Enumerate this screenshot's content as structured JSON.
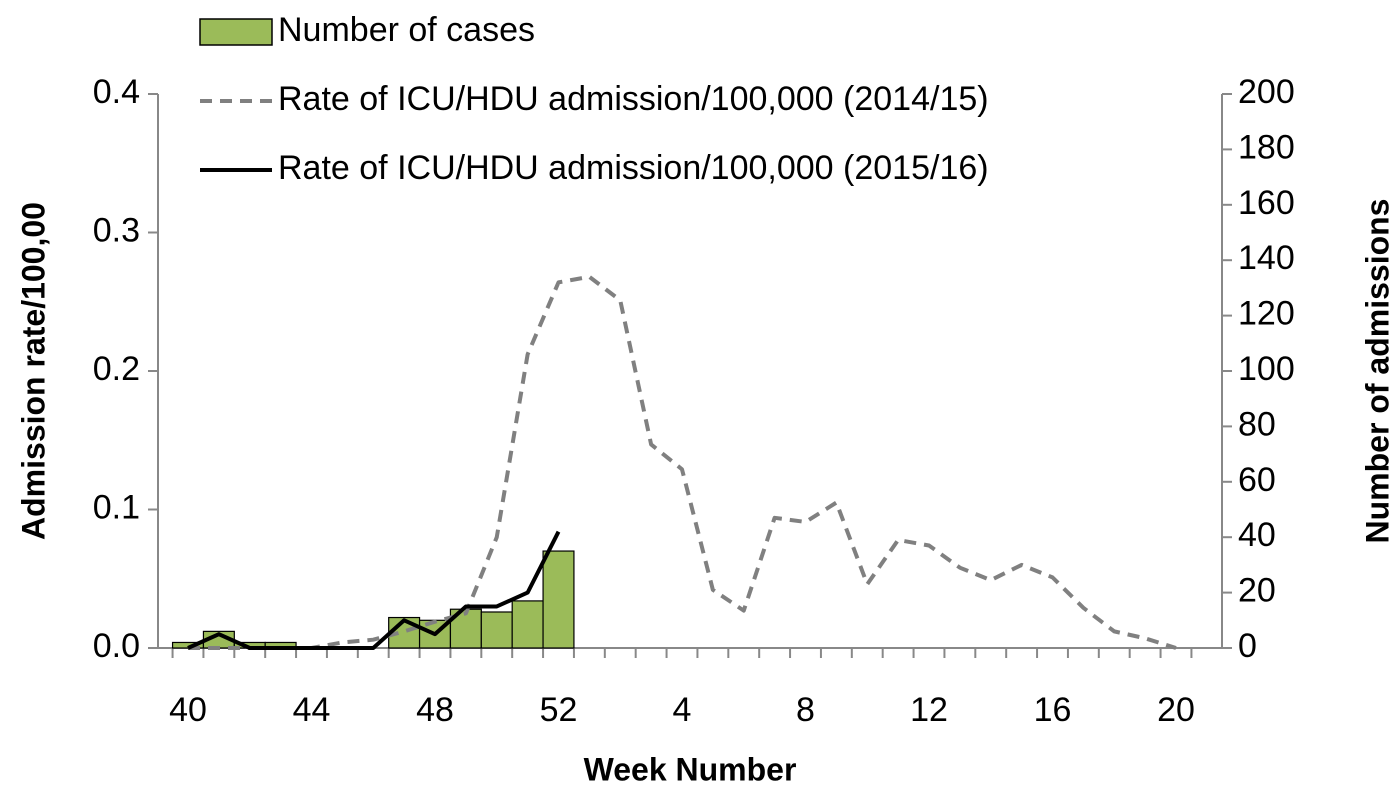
{
  "chart_data": {
    "type": "bar-line",
    "x_label": "Week Number",
    "y_label": "Admission rate/100,00",
    "y2_label": "Number of admissions",
    "categories": [
      "40",
      null,
      null,
      null,
      "44",
      null,
      null,
      null,
      "48",
      null,
      null,
      null,
      "52",
      null,
      null,
      null,
      "4",
      null,
      null,
      null,
      "8",
      null,
      null,
      null,
      "12",
      null,
      null,
      null,
      "16",
      null,
      null,
      null,
      "20"
    ],
    "series": [
      {
        "name": "Number of cases",
        "type": "bar",
        "axis": "y2",
        "color": "#9bbb59",
        "values": [
          2,
          6,
          2,
          2,
          0,
          0,
          0,
          11,
          10,
          14,
          13,
          17,
          35,
          null,
          null,
          null,
          null,
          null,
          null,
          null,
          null,
          null,
          null,
          null,
          null,
          null,
          null,
          null,
          null,
          null,
          null,
          null,
          null
        ]
      },
      {
        "name": "Rate of ICU/HDU admission/100,000 (2014/15)",
        "type": "line",
        "dashed": true,
        "color": "#808080",
        "values": [
          0,
          0,
          0,
          0,
          0,
          0.004,
          0.006,
          0.012,
          0.019,
          0.025,
          0.08,
          0.212,
          0.264,
          0.268,
          0.251,
          0.147,
          0.129,
          0.042,
          0.027,
          0.094,
          0.091,
          0.105,
          0.046,
          0.078,
          0.074,
          0.058,
          0.049,
          0.06,
          0.051,
          0.029,
          0.012,
          0.007,
          0
        ]
      },
      {
        "name": "Rate of ICU/HDU admission/100,000 (2015/16)",
        "type": "line",
        "dashed": false,
        "color": "#000000",
        "values": [
          0,
          0.01,
          0,
          0,
          0,
          0,
          0,
          0.02,
          0.01,
          0.03,
          0.03,
          0.04,
          0.084,
          null,
          null,
          null,
          null,
          null,
          null,
          null,
          null,
          null,
          null,
          null,
          null,
          null,
          null,
          null,
          null,
          null,
          null,
          null,
          null
        ]
      }
    ],
    "ylim": [
      0,
      0.4
    ],
    "yticks": [
      {
        "value": 0,
        "label": "0.0"
      },
      0.1,
      0.2,
      0.3,
      0.4
    ],
    "y2lim": [
      0,
      200
    ],
    "y2ticks": [
      0,
      20,
      40,
      60,
      80,
      100,
      120,
      140,
      160,
      180,
      200
    ],
    "legend": "top-left"
  }
}
